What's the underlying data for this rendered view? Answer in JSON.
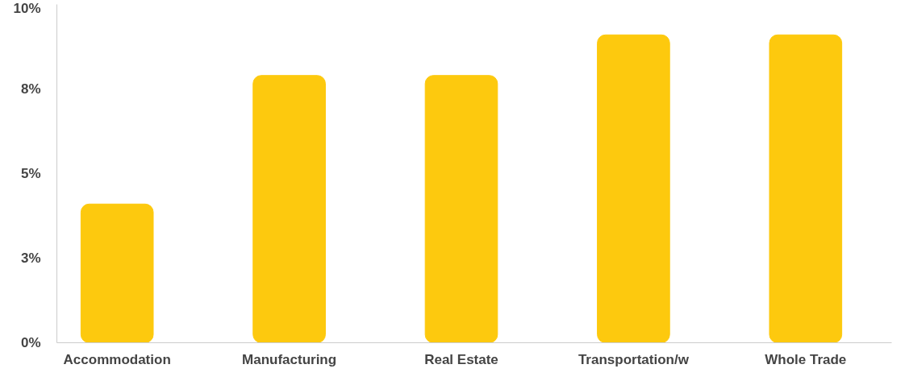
{
  "chart_data": {
    "type": "bar",
    "categories": [
      "Accommodation",
      "Manufacturing",
      "Real Estate",
      "Transportation/w",
      "Whole Trade"
    ],
    "values": [
      4.1,
      7.9,
      7.9,
      9.1,
      9.1
    ],
    "color": "#fdc90e",
    "ylim": [
      0,
      10
    ],
    "yticks": [
      {
        "value": 0,
        "label": "0%"
      },
      {
        "value": 2.5,
        "label": "3%"
      },
      {
        "value": 5,
        "label": "5%"
      },
      {
        "value": 7.5,
        "label": "8%"
      },
      {
        "value": 10,
        "label": "10%"
      }
    ],
    "grid": false
  }
}
